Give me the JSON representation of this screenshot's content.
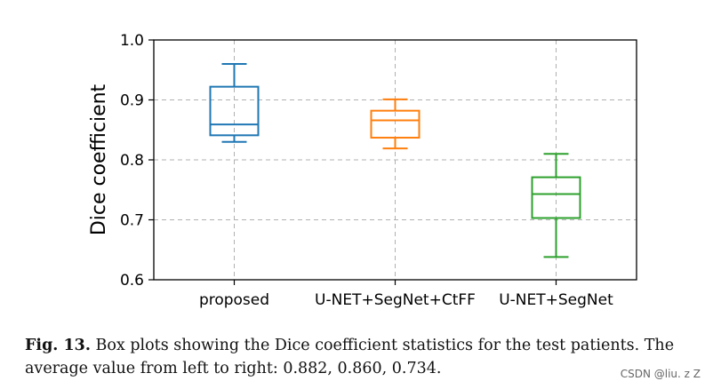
{
  "chart_data": {
    "type": "box",
    "ylabel": "Dice coefficient",
    "xlabel": "",
    "ylim": [
      0.6,
      1.0
    ],
    "yticks": [
      0.6,
      0.7,
      0.8,
      0.9,
      1.0
    ],
    "ytick_labels": [
      "0.6",
      "0.7",
      "0.8",
      "0.9",
      "1.0"
    ],
    "grid": true,
    "categories": [
      "proposed",
      "U-NET+SegNet+CtFF",
      "U-NET+SegNet"
    ],
    "boxes": [
      {
        "name": "proposed",
        "color": "#1f77b4",
        "whislo": 0.83,
        "q1": 0.841,
        "median": 0.859,
        "q3": 0.922,
        "whishi": 0.96
      },
      {
        "name": "U-NET+SegNet+CtFF",
        "color": "#ff7f0e",
        "whislo": 0.819,
        "q1": 0.837,
        "median": 0.866,
        "q3": 0.882,
        "whishi": 0.901
      },
      {
        "name": "U-NET+SegNet",
        "color": "#2ca02c",
        "whislo": 0.638,
        "q1": 0.703,
        "median": 0.743,
        "q3": 0.771,
        "whishi": 0.81
      }
    ]
  },
  "caption": {
    "label": "Fig. 13.",
    "text": " Box plots showing the Dice coefficient statistics for the test patients. The average value from left to right: 0.882, 0.860, 0.734."
  },
  "watermark": "CSDN @liu. z Z"
}
